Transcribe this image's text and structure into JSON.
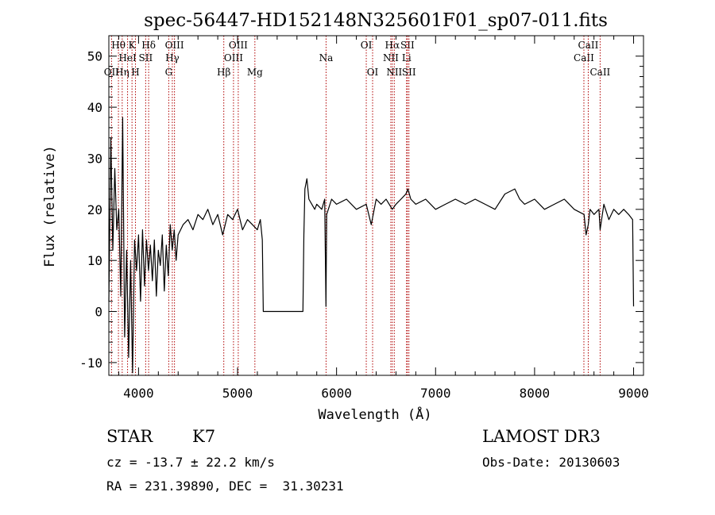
{
  "chart_data": {
    "type": "line",
    "title": "spec-56447-HD152148N325601F01_sp07-011.fits",
    "xlabel": "Wavelength (Å)",
    "ylabel": "Flux (relative)",
    "xlim": [
      3700,
      9100
    ],
    "ylim": [
      -12.5,
      54
    ],
    "x_ticks": [
      4000,
      5000,
      6000,
      7000,
      8000,
      9000
    ],
    "y_ticks": [
      -10,
      0,
      10,
      20,
      30,
      40,
      50
    ],
    "series": [
      {
        "name": "flux",
        "x": [
          3700,
          3720,
          3740,
          3760,
          3780,
          3800,
          3820,
          3840,
          3860,
          3880,
          3900,
          3920,
          3940,
          3960,
          3980,
          4000,
          4020,
          4040,
          4060,
          4080,
          4100,
          4120,
          4140,
          4160,
          4180,
          4200,
          4220,
          4240,
          4260,
          4280,
          4300,
          4320,
          4340,
          4360,
          4380,
          4400,
          4450,
          4500,
          4550,
          4600,
          4650,
          4700,
          4750,
          4800,
          4850,
          4900,
          4950,
          5000,
          5050,
          5100,
          5150,
          5200,
          5230,
          5250,
          5260,
          5270,
          5300,
          5400,
          5500,
          5600,
          5660,
          5670,
          5680,
          5700,
          5720,
          5750,
          5780,
          5800,
          5850,
          5880,
          5893,
          5900,
          5950,
          6000,
          6100,
          6200,
          6300,
          6350,
          6400,
          6450,
          6500,
          6563,
          6600,
          6650,
          6700,
          6720,
          6750,
          6800,
          6900,
          7000,
          7100,
          7200,
          7300,
          7400,
          7500,
          7600,
          7700,
          7800,
          7850,
          7900,
          8000,
          8100,
          8200,
          8300,
          8400,
          8500,
          8520,
          8542,
          8560,
          8600,
          8650,
          8662,
          8700,
          8750,
          8800,
          8850,
          8900,
          8950,
          8990,
          9000
        ],
        "y": [
          2,
          34,
          12,
          28,
          16,
          20,
          3,
          38,
          -5,
          12,
          -9,
          10,
          -12,
          14,
          8,
          15,
          2,
          16,
          5,
          14,
          8,
          13,
          6,
          14,
          3,
          12,
          9,
          15,
          4,
          13,
          7,
          17,
          12,
          16,
          10,
          15,
          17,
          18,
          16,
          19,
          18,
          20,
          17,
          19,
          15,
          19,
          18,
          20,
          16,
          18,
          17,
          16,
          18,
          14,
          0,
          0,
          0,
          0,
          0,
          0,
          0,
          15,
          24,
          26,
          22,
          21,
          20,
          21,
          20,
          22,
          1,
          19,
          22,
          21,
          22,
          20,
          21,
          17,
          22,
          21,
          22,
          20,
          21,
          22,
          23,
          24,
          22,
          21,
          22,
          20,
          21,
          22,
          21,
          22,
          21,
          20,
          23,
          24,
          22,
          21,
          22,
          20,
          21,
          22,
          20,
          19,
          15,
          17,
          20,
          19,
          20,
          16,
          21,
          18,
          20,
          19,
          20,
          19,
          18,
          1
        ]
      }
    ],
    "line_markers": [
      {
        "label": "OII",
        "x": 3727,
        "row": 3
      },
      {
        "label": "Hθ",
        "x": 3797,
        "row": 1
      },
      {
        "label": "Hη",
        "x": 3835,
        "row": 3
      },
      {
        "label": "HeI",
        "x": 3889,
        "row": 2
      },
      {
        "label": "K",
        "x": 3934,
        "row": 1
      },
      {
        "label": "H",
        "x": 3969,
        "row": 3
      },
      {
        "label": "Hδ",
        "x": 4102,
        "row": 1
      },
      {
        "label": "SII",
        "x": 4072,
        "row": 2
      },
      {
        "label": "G",
        "x": 4305,
        "row": 3
      },
      {
        "label": "Hγ",
        "x": 4341,
        "row": 2
      },
      {
        "label": "OIII",
        "x": 4363,
        "row": 1
      },
      {
        "label": "Hβ",
        "x": 4861,
        "row": 3
      },
      {
        "label": "OIII",
        "x": 4959,
        "row": 2
      },
      {
        "label": "OIII",
        "x": 5007,
        "row": 1
      },
      {
        "label": "Mg",
        "x": 5175,
        "row": 3
      },
      {
        "label": "Na",
        "x": 5894,
        "row": 2
      },
      {
        "label": "OI",
        "x": 6300,
        "row": 1
      },
      {
        "label": "OI",
        "x": 6364,
        "row": 3
      },
      {
        "label": "NII",
        "x": 6548,
        "row": 2
      },
      {
        "label": "Hα",
        "x": 6563,
        "row": 1
      },
      {
        "label": "NII",
        "x": 6583,
        "row": 3
      },
      {
        "label": "Li",
        "x": 6707,
        "row": 2
      },
      {
        "label": "SII",
        "x": 6716,
        "row": 1
      },
      {
        "label": "SII",
        "x": 6731,
        "row": 3
      },
      {
        "label": "CaII",
        "x": 8498,
        "row": 2
      },
      {
        "label": "CaII",
        "x": 8542,
        "row": 1
      },
      {
        "label": "CaII",
        "x": 8662,
        "row": 3
      }
    ]
  },
  "info": {
    "object_class": "STAR",
    "subclass": "K7",
    "cz": "cz = -13.7 ± 22.2 km/s",
    "coords": "RA = 231.39890, DEC =  31.30231",
    "survey": "LAMOST DR3",
    "obs_date": "Obs-Date: 20130603"
  },
  "colors": {
    "marker": "#b00000",
    "spectrum": "#000000"
  }
}
